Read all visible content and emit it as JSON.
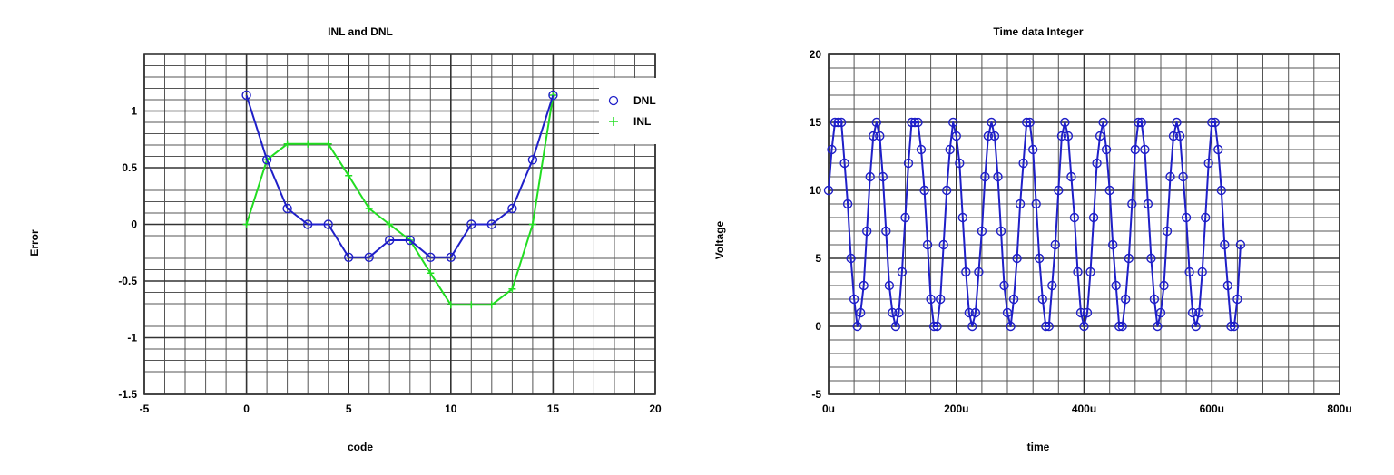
{
  "colors": {
    "dnl": "#1f1fc8",
    "inl": "#22dd22",
    "grid": "#555555",
    "background": "#ffffff"
  },
  "chart_data": [
    {
      "id": "left",
      "type": "line",
      "title": "INL and DNL",
      "xlabel": "code",
      "ylabel": "Error",
      "xlim": [
        -5,
        20
      ],
      "ylim": [
        -1.5,
        1.5
      ],
      "xticks": [
        -5,
        0,
        5,
        10,
        15,
        20
      ],
      "xtick_labels": [
        "-5",
        "0",
        "5",
        "10",
        "15",
        "20"
      ],
      "yticks": [
        -1.5,
        -1,
        -0.5,
        0,
        0.5,
        1
      ],
      "ytick_labels": [
        "-1.5",
        "-1",
        "-0.5",
        "0",
        "0.5",
        "1"
      ],
      "x_minor": 1,
      "y_minor": 0.1,
      "grid": true,
      "legend_position": "right",
      "series": [
        {
          "name": "DNL",
          "marker": "circle",
          "color": "#1f1fc8",
          "x": [
            0,
            1,
            2,
            3,
            4,
            5,
            6,
            7,
            8,
            9,
            10,
            11,
            12,
            13,
            14,
            15
          ],
          "y": [
            1.14,
            0.57,
            0.14,
            0,
            0,
            -0.29,
            -0.29,
            -0.14,
            -0.14,
            -0.29,
            -0.29,
            0,
            0,
            0.14,
            0.57,
            1.14
          ]
        },
        {
          "name": "INL",
          "marker": "plus",
          "color": "#22dd22",
          "x": [
            0,
            1,
            2,
            3,
            4,
            5,
            6,
            7,
            8,
            9,
            10,
            11,
            12,
            13,
            14,
            15
          ],
          "y": [
            0,
            0.57,
            0.71,
            0.71,
            0.71,
            0.43,
            0.14,
            0,
            -0.14,
            -0.43,
            -0.71,
            -0.71,
            -0.71,
            -0.57,
            0,
            1.14
          ]
        }
      ]
    },
    {
      "id": "right",
      "type": "line",
      "title": "Time data Integer",
      "xlabel": "time",
      "ylabel": "Voltage",
      "xlim": [
        0,
        0.0008
      ],
      "ylim": [
        -5,
        20
      ],
      "xticks": [
        0,
        0.0002,
        0.0004,
        0.0006,
        0.0008
      ],
      "xtick_labels": [
        "0u",
        "200u",
        "400u",
        "600u",
        "800u"
      ],
      "yticks": [
        -5,
        0,
        5,
        10,
        15,
        20
      ],
      "ytick_labels": [
        "-5",
        "0",
        "5",
        "10",
        "15",
        "20"
      ],
      "x_minor": 4e-05,
      "y_minor": 1,
      "grid": true,
      "series": [
        {
          "marker": "circle",
          "color": "#1f1fc8",
          "x_step": 5e-06,
          "y": [
            10,
            13,
            15,
            15,
            15,
            12,
            9,
            5,
            2,
            0,
            1,
            3,
            7,
            11,
            14,
            15,
            14,
            11,
            7,
            3,
            1,
            0,
            1,
            4,
            8,
            12,
            15,
            15,
            15,
            13,
            10,
            6,
            2,
            0,
            0,
            2,
            6,
            10,
            13,
            15,
            14,
            12,
            8,
            4,
            1,
            0,
            1,
            4,
            7,
            11,
            14,
            15,
            14,
            11,
            7,
            3,
            1,
            0,
            2,
            5,
            9,
            12,
            15,
            15,
            13,
            9,
            5,
            2,
            0,
            0,
            3,
            6,
            10,
            14,
            15,
            14,
            11,
            8,
            4,
            1,
            0,
            1,
            4,
            8,
            12,
            14,
            15,
            13,
            10,
            6,
            3,
            0,
            0,
            2,
            5,
            9,
            13,
            15,
            15,
            13,
            9,
            5,
            2,
            0,
            1,
            3,
            7,
            11,
            14,
            15,
            14,
            11,
            8,
            4,
            1,
            0,
            1,
            4,
            8,
            12,
            15,
            15,
            13,
            10,
            6,
            3,
            0,
            0,
            2,
            6
          ]
        }
      ]
    }
  ]
}
